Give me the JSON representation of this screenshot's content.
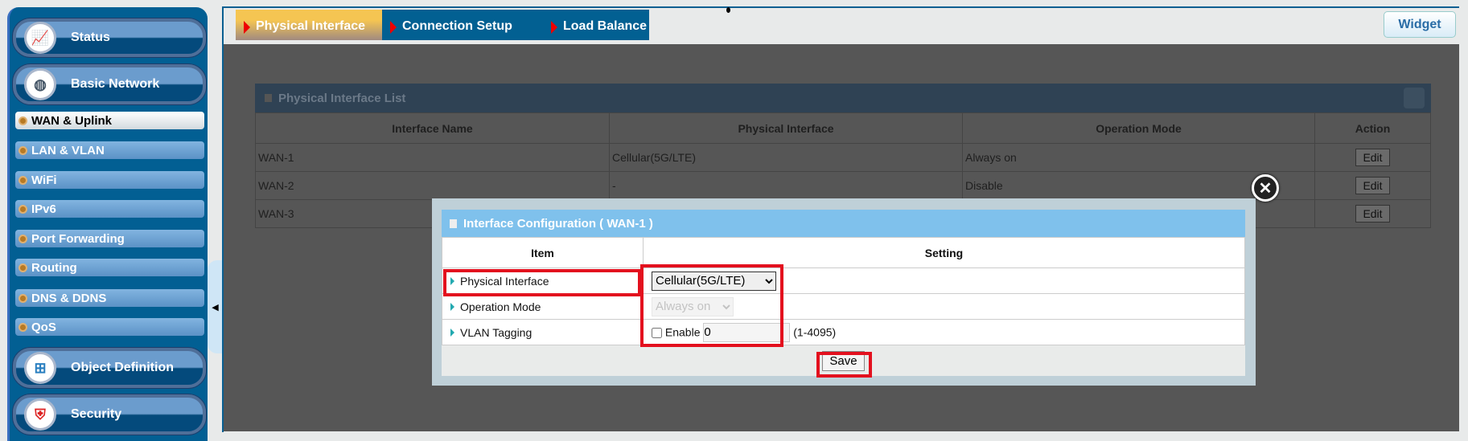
{
  "sidebar": {
    "items": [
      {
        "label": "Status",
        "icon": "status-chart-icon"
      },
      {
        "label": "Basic Network",
        "icon": "network-globe-icon"
      },
      {
        "label": "WAN & Uplink",
        "active": true
      },
      {
        "label": "LAN & VLAN"
      },
      {
        "label": "WiFi"
      },
      {
        "label": "IPv6"
      },
      {
        "label": "Port Forwarding"
      },
      {
        "label": "Routing"
      },
      {
        "label": "DNS & DDNS"
      },
      {
        "label": "QoS"
      },
      {
        "label": "Object Definition",
        "icon": "object-definition-icon"
      },
      {
        "label": "Security",
        "icon": "security-shield-icon"
      }
    ],
    "collapse_icon": "◀"
  },
  "tabs": [
    {
      "label": "Physical Interface",
      "active": true
    },
    {
      "label": "Connection Setup"
    },
    {
      "label": "Load Balance"
    }
  ],
  "widget_label": "Widget",
  "list": {
    "title": "Physical Interface List",
    "columns": [
      "Interface Name",
      "Physical Interface",
      "Operation Mode",
      "Action"
    ],
    "rows": [
      [
        "WAN-1",
        "Cellular(5G/LTE)",
        "Always on",
        "Edit"
      ],
      [
        "WAN-2",
        "-",
        "Disable",
        "Edit"
      ],
      [
        "WAN-3",
        "",
        "",
        "Edit"
      ]
    ]
  },
  "modal": {
    "title": "Interface Configuration ( WAN-1 )",
    "columns": [
      "Item",
      "Setting"
    ],
    "physical_interface_label": "Physical Interface",
    "physical_interface_value": "Cellular(5G/LTE)",
    "operation_mode_label": "Operation Mode",
    "operation_mode_value": "Always on",
    "vlan_label": "VLAN Tagging",
    "vlan_enable_label": "Enable",
    "vlan_enabled": false,
    "vlan_value": "0",
    "vlan_range": "(1-4095)",
    "save_label": "Save",
    "close_icon": "✕"
  },
  "highlight_color": "#e3101e"
}
